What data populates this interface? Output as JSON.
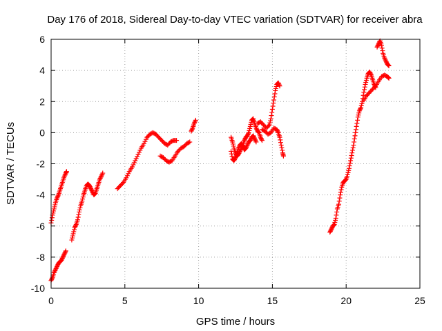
{
  "chart_data": {
    "type": "scatter",
    "title": "Day 176 of 2018, Sidereal Day-to-day VTEC variation (SDTVAR) for receiver abra",
    "xlabel": "GPS time / hours",
    "ylabel": "SDTVAR / TECUs",
    "xlim": [
      0,
      25
    ],
    "ylim": [
      -10,
      6
    ],
    "xticks": [
      "0",
      "5",
      "10",
      "15",
      "20",
      "25"
    ],
    "yticks": [
      "-10",
      "-8",
      "-6",
      "-4",
      "-2",
      "0",
      "2",
      "4",
      "6"
    ],
    "grid": true,
    "marker": "+",
    "color": "#ff0000",
    "segments": [
      [
        [
          0.0,
          -5.8
        ],
        [
          0.1,
          -5.3
        ],
        [
          0.2,
          -4.9
        ],
        [
          0.3,
          -4.5
        ],
        [
          0.4,
          -4.2
        ],
        [
          0.5,
          -4.0
        ],
        [
          0.6,
          -3.7
        ],
        [
          0.7,
          -3.4
        ],
        [
          0.8,
          -3.1
        ],
        [
          0.9,
          -2.8
        ],
        [
          1.0,
          -2.6
        ],
        [
          1.05,
          -2.5
        ]
      ],
      [
        [
          0.0,
          -9.5
        ],
        [
          0.1,
          -9.3
        ],
        [
          0.2,
          -9.0
        ],
        [
          0.3,
          -8.8
        ],
        [
          0.4,
          -8.6
        ],
        [
          0.5,
          -8.4
        ],
        [
          0.6,
          -8.3
        ],
        [
          0.7,
          -8.2
        ],
        [
          0.8,
          -8.0
        ],
        [
          0.9,
          -7.8
        ],
        [
          1.0,
          -7.6
        ]
      ],
      [
        [
          1.4,
          -6.9
        ],
        [
          1.5,
          -6.5
        ],
        [
          1.6,
          -6.1
        ],
        [
          1.7,
          -5.9
        ],
        [
          1.8,
          -5.6
        ],
        [
          1.9,
          -5.1
        ],
        [
          2.0,
          -4.7
        ],
        [
          2.1,
          -4.4
        ],
        [
          2.2,
          -4.0
        ],
        [
          2.3,
          -3.7
        ],
        [
          2.4,
          -3.4
        ],
        [
          2.5,
          -3.3
        ],
        [
          2.6,
          -3.4
        ],
        [
          2.7,
          -3.6
        ],
        [
          2.8,
          -3.8
        ],
        [
          2.9,
          -4.0
        ],
        [
          3.0,
          -3.9
        ],
        [
          3.1,
          -3.6
        ],
        [
          3.2,
          -3.3
        ],
        [
          3.3,
          -3.0
        ],
        [
          3.4,
          -2.8
        ],
        [
          3.5,
          -2.6
        ]
      ],
      [
        [
          4.5,
          -3.6
        ],
        [
          4.7,
          -3.4
        ],
        [
          4.9,
          -3.2
        ],
        [
          5.1,
          -2.9
        ],
        [
          5.3,
          -2.5
        ],
        [
          5.5,
          -2.2
        ],
        [
          5.7,
          -1.8
        ],
        [
          5.9,
          -1.4
        ],
        [
          6.1,
          -1.0
        ],
        [
          6.3,
          -0.7
        ],
        [
          6.5,
          -0.3
        ],
        [
          6.7,
          -0.1
        ],
        [
          6.9,
          0.0
        ],
        [
          7.1,
          -0.1
        ],
        [
          7.3,
          -0.3
        ],
        [
          7.5,
          -0.5
        ],
        [
          7.7,
          -0.7
        ],
        [
          7.9,
          -0.8
        ],
        [
          8.1,
          -0.6
        ],
        [
          8.3,
          -0.5
        ],
        [
          8.5,
          -0.5
        ]
      ],
      [
        [
          7.4,
          -1.5
        ],
        [
          7.6,
          -1.6
        ],
        [
          7.8,
          -1.8
        ],
        [
          8.0,
          -1.9
        ],
        [
          8.2,
          -1.8
        ],
        [
          8.4,
          -1.5
        ],
        [
          8.6,
          -1.2
        ],
        [
          8.8,
          -1.0
        ],
        [
          9.0,
          -0.9
        ],
        [
          9.2,
          -0.7
        ],
        [
          9.4,
          -0.6
        ]
      ],
      [
        [
          9.5,
          0.1
        ],
        [
          9.6,
          0.3
        ],
        [
          9.7,
          0.6
        ],
        [
          9.8,
          0.8
        ]
      ],
      [
        [
          12.2,
          -0.3
        ],
        [
          12.3,
          -0.6
        ],
        [
          12.4,
          -1.0
        ],
        [
          12.5,
          -1.3
        ],
        [
          12.6,
          -1.5
        ],
        [
          12.7,
          -1.4
        ],
        [
          12.8,
          -1.2
        ],
        [
          12.9,
          -1.0
        ],
        [
          13.0,
          -0.8
        ],
        [
          13.1,
          -0.5
        ],
        [
          13.2,
          -0.3
        ],
        [
          13.3,
          -0.2
        ],
        [
          13.4,
          0.0
        ],
        [
          13.5,
          0.4
        ],
        [
          13.6,
          0.8
        ],
        [
          13.7,
          0.9
        ],
        [
          13.8,
          0.6
        ],
        [
          13.9,
          0.3
        ],
        [
          14.0,
          0.1
        ],
        [
          14.1,
          0.0
        ],
        [
          14.2,
          -0.3
        ],
        [
          14.3,
          -0.5
        ]
      ],
      [
        [
          12.2,
          -1.2
        ],
        [
          12.3,
          -1.7
        ],
        [
          12.4,
          -1.8
        ],
        [
          12.5,
          -1.6
        ],
        [
          12.6,
          -1.3
        ],
        [
          12.7,
          -1.0
        ],
        [
          12.8,
          -0.8
        ],
        [
          12.9,
          -0.7
        ],
        [
          13.0,
          -0.9
        ],
        [
          13.1,
          -1.1
        ],
        [
          13.2,
          -1.0
        ],
        [
          13.3,
          -0.8
        ],
        [
          13.4,
          -0.6
        ],
        [
          13.5,
          -0.5
        ],
        [
          13.6,
          -0.3
        ],
        [
          13.7,
          -0.2
        ],
        [
          13.8,
          -0.4
        ],
        [
          13.9,
          -0.6
        ]
      ],
      [
        [
          14.0,
          0.6
        ],
        [
          14.2,
          0.7
        ],
        [
          14.4,
          0.5
        ],
        [
          14.6,
          0.3
        ],
        [
          14.8,
          0.5
        ],
        [
          14.9,
          0.9
        ],
        [
          15.0,
          1.5
        ],
        [
          15.1,
          2.1
        ],
        [
          15.2,
          2.7
        ],
        [
          15.3,
          3.1
        ],
        [
          15.4,
          3.2
        ],
        [
          15.5,
          3.0
        ]
      ],
      [
        [
          14.3,
          0.2
        ],
        [
          14.5,
          0.1
        ],
        [
          14.7,
          -0.1
        ],
        [
          14.9,
          0.0
        ],
        [
          15.1,
          0.3
        ],
        [
          15.3,
          0.2
        ],
        [
          15.4,
          0.0
        ],
        [
          15.5,
          -0.3
        ],
        [
          15.6,
          -0.8
        ],
        [
          15.7,
          -1.3
        ],
        [
          15.75,
          -1.5
        ]
      ],
      [
        [
          18.9,
          -6.4
        ],
        [
          19.0,
          -6.2
        ],
        [
          19.1,
          -6.0
        ],
        [
          19.2,
          -5.9
        ],
        [
          19.3,
          -5.5
        ],
        [
          19.4,
          -4.9
        ],
        [
          19.5,
          -4.6
        ],
        [
          19.6,
          -4.0
        ],
        [
          19.7,
          -3.5
        ],
        [
          19.8,
          -3.2
        ],
        [
          19.9,
          -3.1
        ],
        [
          20.0,
          -3.0
        ],
        [
          20.1,
          -2.7
        ],
        [
          20.2,
          -2.3
        ],
        [
          20.3,
          -1.8
        ],
        [
          20.4,
          -1.3
        ],
        [
          20.5,
          -0.8
        ],
        [
          20.6,
          -0.2
        ],
        [
          20.7,
          0.4
        ],
        [
          20.8,
          1.0
        ],
        [
          20.9,
          1.4
        ],
        [
          21.0,
          1.6
        ],
        [
          21.1,
          2.0
        ],
        [
          21.2,
          2.6
        ],
        [
          21.3,
          3.1
        ],
        [
          21.4,
          3.5
        ],
        [
          21.5,
          3.8
        ],
        [
          21.6,
          3.9
        ],
        [
          21.7,
          3.7
        ],
        [
          21.8,
          3.4
        ],
        [
          21.9,
          3.1
        ],
        [
          22.0,
          2.9
        ]
      ],
      [
        [
          21.2,
          2.1
        ],
        [
          21.4,
          2.4
        ],
        [
          21.6,
          2.6
        ],
        [
          21.8,
          2.8
        ],
        [
          22.0,
          3.0
        ],
        [
          22.2,
          3.3
        ],
        [
          22.4,
          3.6
        ],
        [
          22.6,
          3.7
        ],
        [
          22.8,
          3.6
        ],
        [
          22.9,
          3.5
        ]
      ],
      [
        [
          22.1,
          5.5
        ],
        [
          22.2,
          5.7
        ],
        [
          22.3,
          5.9
        ],
        [
          22.4,
          5.6
        ],
        [
          22.5,
          5.1
        ],
        [
          22.6,
          4.8
        ],
        [
          22.7,
          4.6
        ],
        [
          22.8,
          4.4
        ],
        [
          22.9,
          4.3
        ]
      ]
    ]
  }
}
